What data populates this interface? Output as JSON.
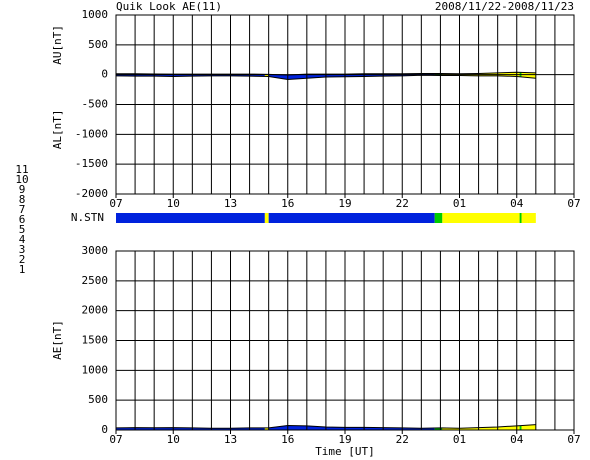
{
  "title": "Quik Look AE(11)",
  "date_range": "2008/11/22-2008/11/23",
  "station_legend": {
    "labels": [
      "11",
      "10",
      "9",
      "8",
      "7",
      "6",
      "5",
      "4",
      "3",
      "2",
      "1"
    ],
    "colors": [
      "#00cccc",
      "#ff00ff",
      "#0000ff",
      "#ffff66",
      "#00cc00",
      "#ff0000",
      "#dddddd",
      "#aaaaaa",
      "#008888",
      "#880088",
      "#0000aa"
    ]
  },
  "stations": {
    "label": "N.STN",
    "segments": [
      {
        "start": 0,
        "end": 7.8,
        "color": "#0022dd"
      },
      {
        "start": 7.8,
        "end": 8.0,
        "color": "#ffff00"
      },
      {
        "start": 8.0,
        "end": 16.7,
        "color": "#0022dd"
      },
      {
        "start": 16.7,
        "end": 17.1,
        "color": "#00cc00"
      },
      {
        "start": 17.1,
        "end": 21.15,
        "color": "#ffff00"
      },
      {
        "start": 21.15,
        "end": 21.25,
        "color": "#00cc00"
      },
      {
        "start": 21.25,
        "end": 22,
        "color": "#ffff00"
      }
    ]
  },
  "chart_data": [
    {
      "type": "line",
      "y_labels": [
        "AU[nT]",
        "AL[nT]"
      ],
      "x": [
        0,
        1,
        2,
        3,
        4,
        5,
        6,
        7,
        8,
        9,
        10,
        11,
        12,
        13,
        14,
        15,
        16,
        17,
        18,
        19,
        20,
        21,
        22
      ],
      "series": [
        {
          "name": "AU",
          "color": "#000000",
          "values": [
            15,
            15,
            12,
            10,
            10,
            10,
            10,
            10,
            5,
            -5,
            10,
            10,
            10,
            15,
            15,
            15,
            20,
            20,
            15,
            20,
            30,
            40,
            30
          ]
        },
        {
          "name": "AL",
          "color": "#000000",
          "values": [
            -20,
            -25,
            -25,
            -30,
            -25,
            -20,
            -20,
            -25,
            -30,
            -80,
            -60,
            -40,
            -35,
            -30,
            -25,
            -20,
            -10,
            -15,
            -15,
            -20,
            -20,
            -30,
            -60
          ]
        }
      ],
      "xlim": [
        0,
        24
      ],
      "xticks": [
        {
          "value": 0,
          "label": "07"
        },
        {
          "value": 3,
          "label": "10"
        },
        {
          "value": 6,
          "label": "13"
        },
        {
          "value": 9,
          "label": "16"
        },
        {
          "value": 12,
          "label": "19"
        },
        {
          "value": 15,
          "label": "22"
        },
        {
          "value": 18,
          "label": "01"
        },
        {
          "value": 21,
          "label": "04"
        },
        {
          "value": 24,
          "label": "07"
        }
      ],
      "xgrid_step": 1,
      "ylim": [
        -2000,
        1000
      ],
      "yticks": [
        -2000,
        -1500,
        -1000,
        -500,
        0,
        500,
        1000
      ],
      "grid": true
    },
    {
      "type": "line",
      "y_label": "AE[nT]",
      "x_label": "Time [UT]",
      "x": [
        0,
        1,
        2,
        3,
        4,
        5,
        6,
        7,
        8,
        9,
        10,
        11,
        12,
        13,
        14,
        15,
        16,
        17,
        18,
        19,
        20,
        21,
        22
      ],
      "series": [
        {
          "name": "AE",
          "color": "#000000",
          "values": [
            35,
            40,
            37,
            40,
            35,
            30,
            30,
            35,
            35,
            75,
            70,
            50,
            45,
            45,
            40,
            35,
            30,
            35,
            30,
            40,
            50,
            70,
            90
          ]
        }
      ],
      "xlim": [
        0,
        24
      ],
      "xticks": [
        {
          "value": 0,
          "label": "07"
        },
        {
          "value": 3,
          "label": "10"
        },
        {
          "value": 6,
          "label": "13"
        },
        {
          "value": 9,
          "label": "16"
        },
        {
          "value": 12,
          "label": "19"
        },
        {
          "value": 15,
          "label": "22"
        },
        {
          "value": 18,
          "label": "01"
        },
        {
          "value": 21,
          "label": "04"
        },
        {
          "value": 24,
          "label": "07"
        }
      ],
      "xgrid_step": 1,
      "ylim": [
        0,
        3000
      ],
      "yticks": [
        0,
        500,
        1000,
        1500,
        2000,
        2500,
        3000
      ],
      "grid": true
    }
  ]
}
